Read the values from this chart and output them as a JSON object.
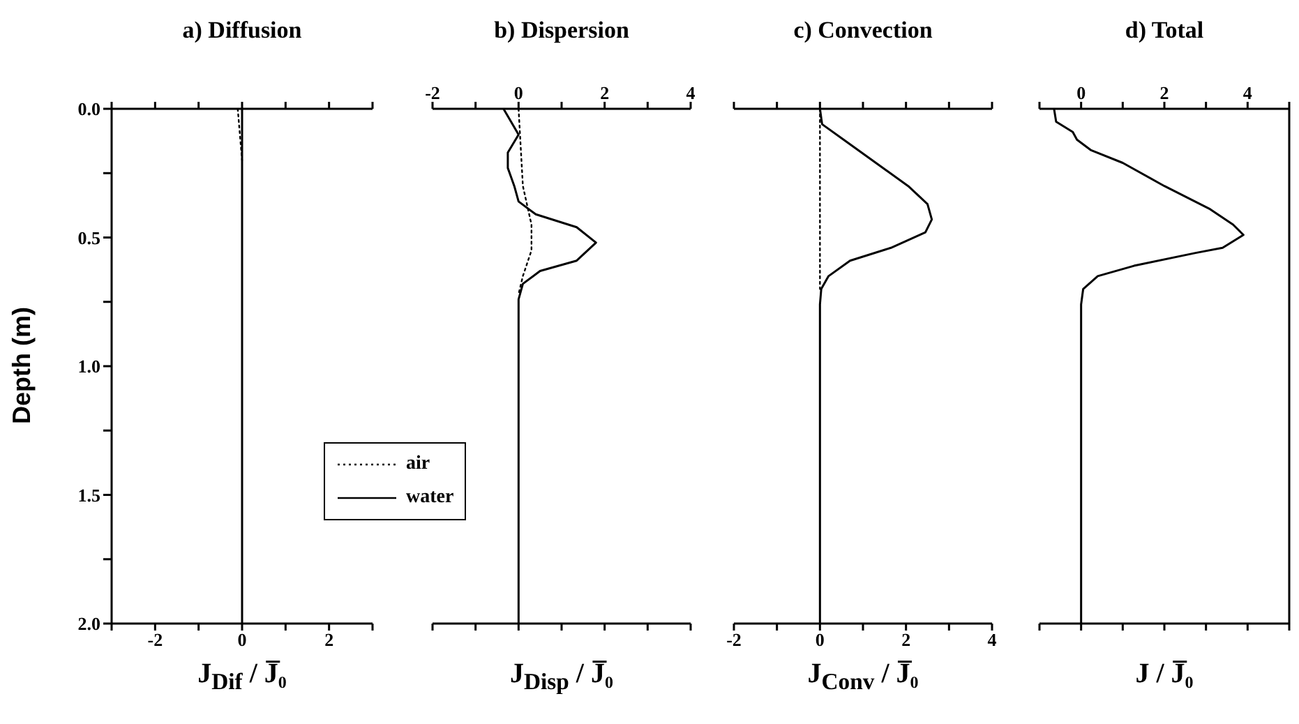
{
  "chart_data": [
    {
      "type": "line",
      "title": "a) Diffusion",
      "xlabel": "J$_{Dif}$ / J̅₀",
      "ylabel": "Depth (m)",
      "legend": "right",
      "xlim": [
        -3,
        3
      ],
      "xticks": [
        {
          "value": -3,
          "label": null
        },
        -2,
        {
          "value": -1,
          "label": null
        },
        0,
        {
          "value": 1,
          "label": null
        },
        2,
        {
          "value": 3,
          "label": null
        }
      ],
      "ylim": [
        2,
        0
      ],
      "yticks": [
        {
          "value": 0,
          "label": "0.0"
        },
        {
          "value": 0.25,
          "label": null
        },
        0.5,
        {
          "value": 0.75,
          "label": null
        },
        {
          "value": 1,
          "label": "1.0"
        },
        {
          "value": 1.25,
          "label": null
        },
        1.5,
        {
          "value": 1.75,
          "label": null
        },
        {
          "value": 2,
          "label": "2.0"
        }
      ],
      "series": [
        {
          "name": "air",
          "color": "#000000",
          "line_style": "dotted",
          "x": [
            -0.1,
            -0.05,
            0
          ],
          "values": [
            0,
            0.1,
            0.2
          ]
        },
        {
          "name": "water",
          "color": "#000000",
          "line_style": "solid",
          "x": [
            0,
            0,
            0
          ],
          "values": [
            0,
            1,
            2
          ]
        }
      ]
    },
    {
      "type": "line",
      "title": "b) Dispersion",
      "xlabel": "J$_{Disp}$ / J̅₀",
      "tick_labels": "x",
      "xlim": [
        -2,
        4
      ],
      "xticks": [
        -2,
        {
          "value": -1,
          "label": null
        },
        0,
        {
          "value": 1,
          "label": null
        },
        2,
        {
          "value": 3,
          "label": null
        },
        4
      ],
      "ylim": [
        2,
        0
      ],
      "series": [
        {
          "color": "#000000",
          "line_style": "solid",
          "x": [
            -0.35,
            0,
            -0.25,
            -0.25,
            -0.1,
            0,
            0.4,
            1.35,
            1.8,
            1.35,
            0.5,
            0.1,
            0,
            0
          ],
          "values": [
            0,
            0.1,
            0.17,
            0.23,
            0.3,
            0.36,
            0.41,
            0.46,
            0.52,
            0.59,
            0.63,
            0.68,
            0.74,
            2
          ]
        },
        {
          "color": "#000000",
          "line_style": "dotted",
          "x": [
            0,
            0.1,
            0.3,
            0.3,
            0.1,
            0
          ],
          "values": [
            0,
            0.3,
            0.45,
            0.55,
            0.65,
            0.72
          ]
        }
      ]
    },
    {
      "type": "line",
      "title": "c) Convection",
      "xlabel": "J$_{Conv}$ / J̅₀",
      "tick_labels": "x",
      "xlim": [
        -2,
        4
      ],
      "xticks": [
        -2,
        {
          "value": -1,
          "label": null
        },
        0,
        {
          "value": 1,
          "label": null
        },
        2,
        {
          "value": 3,
          "label": null
        },
        4
      ],
      "ylim": [
        2,
        0
      ],
      "series": [
        {
          "color": "#000000",
          "line_style": "solid",
          "x": [
            0,
            0.05,
            0.55,
            1.3,
            2.05,
            2.5,
            2.6,
            2.45,
            1.65,
            0.7,
            0.2,
            0.03,
            0,
            0
          ],
          "values": [
            0,
            0.06,
            0.12,
            0.21,
            0.3,
            0.37,
            0.43,
            0.48,
            0.54,
            0.59,
            0.65,
            0.7,
            0.76,
            2
          ]
        },
        {
          "color": "#000000",
          "line_style": "dotted",
          "x": [
            0,
            0
          ],
          "values": [
            0,
            0.7
          ]
        }
      ]
    },
    {
      "type": "line",
      "title": "d) Total",
      "xlabel": "J / J̅₀",
      "tick_labels": "x",
      "xlim": [
        -1,
        5
      ],
      "xticks": [
        {
          "value": -1,
          "label": null
        },
        0,
        {
          "value": 1,
          "label": null
        },
        2,
        {
          "value": 3,
          "label": null
        },
        4,
        {
          "value": 5,
          "label": null
        }
      ],
      "ylim": [
        2,
        0
      ],
      "series": [
        {
          "color": "#000000",
          "line_style": "solid",
          "x": [
            -0.65,
            -0.6,
            -0.2,
            -0.1,
            0.23,
            1,
            2,
            3.1,
            3.65,
            3.9,
            3.4,
            2.75,
            1.27,
            0.4,
            0.05,
            0,
            0
          ],
          "values": [
            0,
            0.05,
            0.09,
            0.12,
            0.16,
            0.21,
            0.3,
            0.39,
            0.45,
            0.49,
            0.54,
            0.56,
            0.61,
            0.65,
            0.7,
            0.76,
            2
          ]
        }
      ]
    }
  ]
}
